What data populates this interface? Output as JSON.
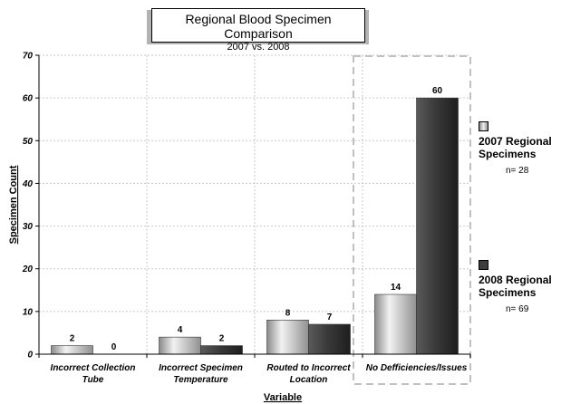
{
  "chart_data": {
    "type": "bar",
    "title": "Regional Blood Specimen Comparison",
    "subtitle": "2007 vs. 2008",
    "xlabel": "Variable",
    "ylabel": "Specimen Count",
    "ylim": [
      0,
      70
    ],
    "yticks": [
      0,
      10,
      20,
      30,
      40,
      50,
      60,
      70
    ],
    "categories": [
      "Incorrect Collection Tube",
      "Incorrect Specimen Temperature",
      "Routed to Incorrect Location",
      "No Defficiencies/Issues"
    ],
    "series": [
      {
        "name": "2007 Regional Specimens",
        "n_label": "n= 28",
        "values": [
          2,
          4,
          8,
          14
        ],
        "color": "#b8b8b8"
      },
      {
        "name": "2008 Regional Specimens",
        "n_label": "n= 69",
        "values": [
          0,
          2,
          7,
          60
        ],
        "color": "#3d3d3d"
      }
    ],
    "grid": true,
    "legend_position": "right"
  }
}
